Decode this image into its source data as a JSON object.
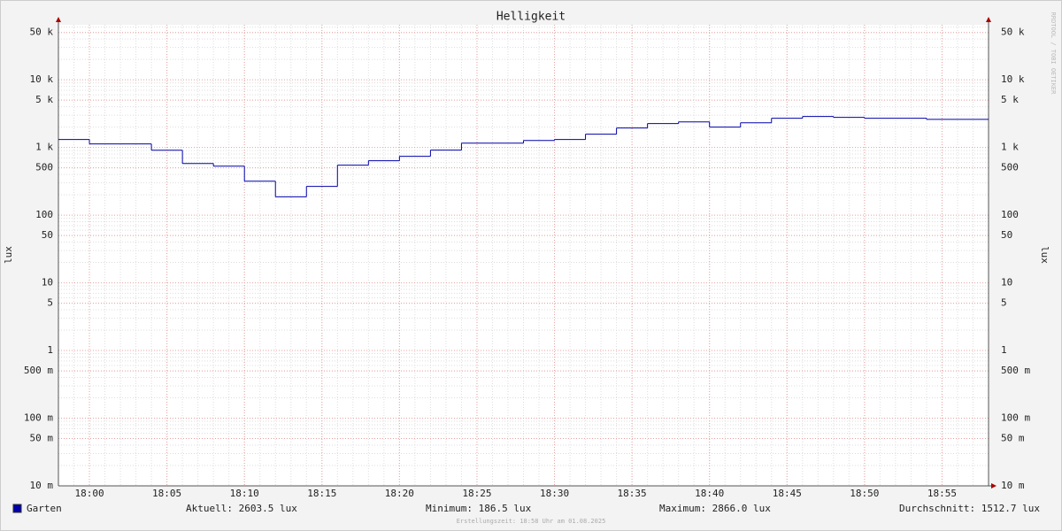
{
  "chart_data": {
    "type": "step-line",
    "title": "Helligkeit",
    "y_label": "lux",
    "y2_label": "lux",
    "watermark": "RRDTOOL / TOBI OETIKER",
    "log_scale": true,
    "grid": true,
    "x": [
      "17:58",
      "18:00",
      "18:04",
      "18:06",
      "18:08",
      "18:10",
      "18:12",
      "18:14",
      "18:16",
      "18:18",
      "18:20",
      "18:22",
      "18:24",
      "18:28",
      "18:30",
      "18:32",
      "18:34",
      "18:36",
      "18:38",
      "18:40",
      "18:42",
      "18:44",
      "18:46",
      "18:48",
      "18:50",
      "18:54"
    ],
    "xlim": [
      "17:58",
      "18:58"
    ],
    "xticks": [
      "18:00",
      "18:05",
      "18:10",
      "18:15",
      "18:20",
      "18:25",
      "18:30",
      "18:35",
      "18:40",
      "18:45",
      "18:50",
      "18:55"
    ],
    "ylim": [
      0.01,
      65000
    ],
    "yticks": [
      {
        "value": 50000,
        "label": "50 k"
      },
      {
        "value": 10000,
        "label": "10 k"
      },
      {
        "value": 5000,
        "label": "5 k"
      },
      {
        "value": 1000,
        "label": "1 k"
      },
      500,
      100,
      50,
      10,
      5,
      1,
      {
        "value": 0.5,
        "label": "500 m"
      },
      {
        "value": 0.1,
        "label": "100 m"
      },
      {
        "value": 0.05,
        "label": "50 m"
      },
      {
        "value": 0.01,
        "label": "10 m"
      }
    ],
    "series": [
      {
        "name": "Garten",
        "color": "#0000aa",
        "values": [
          1310,
          1130,
          910,
          580,
          530,
          318,
          186.5,
          266,
          548,
          637,
          740,
          914,
          1160,
          1270,
          1310,
          1570,
          1940,
          2255,
          2390,
          2000,
          2320,
          2700,
          2866,
          2780,
          2700,
          2603.5
        ]
      }
    ],
    "legend_stats": [
      "Aktuell: 2603.5 lux",
      "Minimum: 186.5 lux",
      "Maximum: 2866.0 lux",
      "Durchschnitt: 1512.7 lux"
    ],
    "footer": "Erstellungszeit: 18:58 Uhr am 01.08.2025"
  }
}
